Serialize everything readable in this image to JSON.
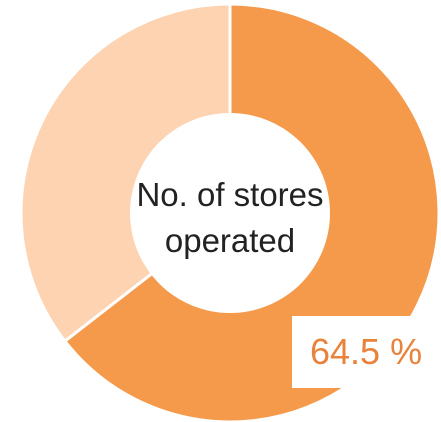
{
  "chart_data": {
    "type": "pie",
    "style": "donut",
    "center_label_lines": [
      "No. of stores",
      "operated"
    ],
    "slices": [
      {
        "value": 64.5,
        "color": "#f59a4b"
      },
      {
        "value": 35.5,
        "color": "#fdd3b1"
      }
    ],
    "data_label": {
      "text": "64.5 %",
      "color": "#e9823a"
    }
  }
}
